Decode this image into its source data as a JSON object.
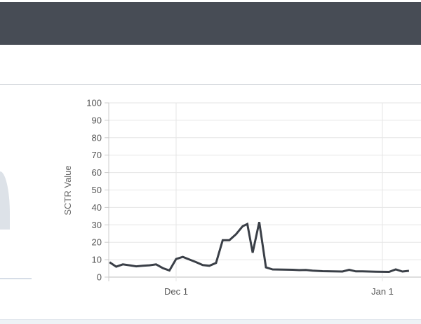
{
  "header": {},
  "chart_data": {
    "type": "line",
    "ylabel": "SCTR Value",
    "xlabel": "",
    "ylim": [
      0,
      100
    ],
    "yticks": [
      0,
      10,
      20,
      30,
      40,
      50,
      60,
      70,
      80,
      90,
      100
    ],
    "xticks": [
      {
        "label": "Dec 1",
        "day": 0
      },
      {
        "label": "Jan 1",
        "day": 31
      }
    ],
    "grid": true,
    "line_color": "#3a3f47",
    "x_unit": "days relative to Dec 1",
    "series": [
      {
        "points": [
          [
            -10,
            8.5
          ],
          [
            -9,
            6
          ],
          [
            -8,
            7.3
          ],
          [
            -7,
            6.8
          ],
          [
            -6,
            6.2
          ],
          [
            -5,
            6.5
          ],
          [
            -4,
            6.8
          ],
          [
            -3,
            7.3
          ],
          [
            -2,
            5.2
          ],
          [
            -1,
            3.8
          ],
          [
            0,
            10.4
          ],
          [
            1,
            11.6
          ],
          [
            2,
            10.1
          ],
          [
            3,
            8.6
          ],
          [
            4,
            6.9
          ],
          [
            5,
            6.5
          ],
          [
            6,
            8.1
          ],
          [
            7,
            21.2
          ],
          [
            8,
            21.2
          ],
          [
            9,
            24.6
          ],
          [
            10,
            29.2
          ],
          [
            10.7,
            30.5
          ],
          [
            11.5,
            14
          ],
          [
            12.5,
            31.6
          ],
          [
            13.5,
            5.6
          ],
          [
            14.5,
            4.4
          ],
          [
            16,
            4.3
          ],
          [
            17.5,
            4.2
          ],
          [
            18.5,
            4.0
          ],
          [
            19.5,
            4.1
          ],
          [
            20.5,
            3.7
          ],
          [
            22,
            3.4
          ],
          [
            25,
            3.2
          ],
          [
            26,
            4.2
          ],
          [
            27,
            3.3
          ],
          [
            28,
            3.3
          ],
          [
            30,
            3.1
          ],
          [
            32,
            3.0
          ],
          [
            33,
            4.4
          ],
          [
            34,
            3.2
          ],
          [
            35,
            3.6
          ]
        ]
      }
    ]
  }
}
